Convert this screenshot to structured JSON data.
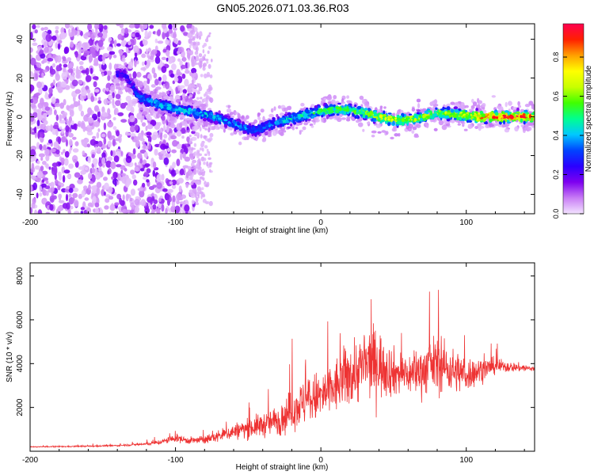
{
  "figure_title": "GN05.2026.071.03.36.R03",
  "chart_data": [
    {
      "type": "heatmap",
      "name": "spectrogram",
      "xlabel": "Height of straight line (km)",
      "ylabel": "Frequency (Hz)",
      "xlim": [
        -200,
        147
      ],
      "ylim": [
        -50,
        48
      ],
      "x_ticks": [
        -200,
        -100,
        0,
        100
      ],
      "x_tick_labels": [
        "-200",
        "-100",
        "0",
        "100"
      ],
      "y_ticks": [
        -40,
        -20,
        0,
        20,
        40
      ],
      "y_tick_labels": [
        "-40",
        "-20",
        "0",
        "20",
        "40"
      ],
      "colorbar": {
        "label": "Normalized spectral amplitude",
        "range": [
          0,
          0.97
        ],
        "ticks": [
          0.0,
          0.2,
          0.4,
          0.6,
          0.8
        ],
        "tick_labels": [
          "0.0",
          "0.2",
          "0.4",
          "0.6",
          "0.8"
        ],
        "colors": [
          "#f3e3ff",
          "#c87cf5",
          "#7e00f0",
          "#2a00ff",
          "#0044ff",
          "#00c8ff",
          "#00ff90",
          "#40ff00",
          "#c8ff00",
          "#ffff00",
          "#ffa000",
          "#ff2000",
          "#ff0050"
        ]
      },
      "ridge": [
        {
          "x": -135,
          "f": 22,
          "a": 0.22
        },
        {
          "x": -125,
          "f": 10,
          "a": 0.32
        },
        {
          "x": -110,
          "f": 6,
          "a": 0.4
        },
        {
          "x": -100,
          "f": 4,
          "a": 0.42
        },
        {
          "x": -85,
          "f": 2,
          "a": 0.4
        },
        {
          "x": -70,
          "f": -1,
          "a": 0.38
        },
        {
          "x": -55,
          "f": -5,
          "a": 0.35
        },
        {
          "x": -45,
          "f": -7,
          "a": 0.32
        },
        {
          "x": -35,
          "f": -4,
          "a": 0.35
        },
        {
          "x": -20,
          "f": -1,
          "a": 0.42
        },
        {
          "x": -10,
          "f": 1,
          "a": 0.45
        },
        {
          "x": 0,
          "f": 3,
          "a": 0.5
        },
        {
          "x": 15,
          "f": 4,
          "a": 0.52
        },
        {
          "x": 30,
          "f": 2,
          "a": 0.55
        },
        {
          "x": 40,
          "f": 0,
          "a": 0.62
        },
        {
          "x": 55,
          "f": -2,
          "a": 0.65
        },
        {
          "x": 65,
          "f": -1,
          "a": 0.6
        },
        {
          "x": 80,
          "f": 2,
          "a": 0.58
        },
        {
          "x": 95,
          "f": 1,
          "a": 0.65
        },
        {
          "x": 110,
          "f": 0,
          "a": 0.78
        },
        {
          "x": 125,
          "f": 0,
          "a": 0.85
        },
        {
          "x": 147,
          "f": 0,
          "a": 0.8
        }
      ]
    },
    {
      "type": "line",
      "name": "snr",
      "xlabel": "Height of straight line (km)",
      "ylabel": "SNR (10 * v/v)",
      "xlim": [
        -200,
        147
      ],
      "ylim": [
        0,
        8600
      ],
      "x_ticks": [
        -200,
        -100,
        0,
        100
      ],
      "x_tick_labels": [
        "-200",
        "-100",
        "0",
        "100"
      ],
      "y_ticks": [
        2000,
        4000,
        6000,
        8000
      ],
      "y_tick_labels": [
        "2000",
        "4000",
        "6000",
        "8000"
      ],
      "color": "#ee3333",
      "series": [
        {
          "name": "SNR",
          "x": [
            -200,
            -180,
            -160,
            -140,
            -120,
            -110,
            -100,
            -90,
            -80,
            -70,
            -60,
            -50,
            -40,
            -30,
            -25,
            -20,
            -15,
            -10,
            -5,
            0,
            5,
            10,
            15,
            20,
            25,
            30,
            35,
            40,
            50,
            60,
            70,
            75,
            80,
            90,
            100,
            110,
            120,
            130,
            140,
            147
          ],
          "mean": [
            200,
            210,
            230,
            260,
            330,
            420,
            600,
            480,
            520,
            700,
            900,
            1050,
            1200,
            1400,
            1600,
            1900,
            2100,
            2300,
            2400,
            2500,
            2700,
            2900,
            3300,
            3500,
            3700,
            3900,
            4100,
            4000,
            3600,
            3500,
            3700,
            3900,
            4000,
            3700,
            3500,
            3700,
            3900,
            3850,
            3800,
            3750
          ],
          "spread": [
            50,
            60,
            70,
            80,
            150,
            250,
            400,
            350,
            400,
            600,
            800,
            1000,
            1200,
            1500,
            1800,
            2000,
            2200,
            2400,
            2500,
            2600,
            2700,
            2800,
            3000,
            3200,
            3300,
            3500,
            3600,
            3400,
            2400,
            2000,
            2500,
            2700,
            2800,
            2200,
            1800,
            1200,
            800,
            500,
            400,
            300
          ]
        }
      ]
    }
  ]
}
